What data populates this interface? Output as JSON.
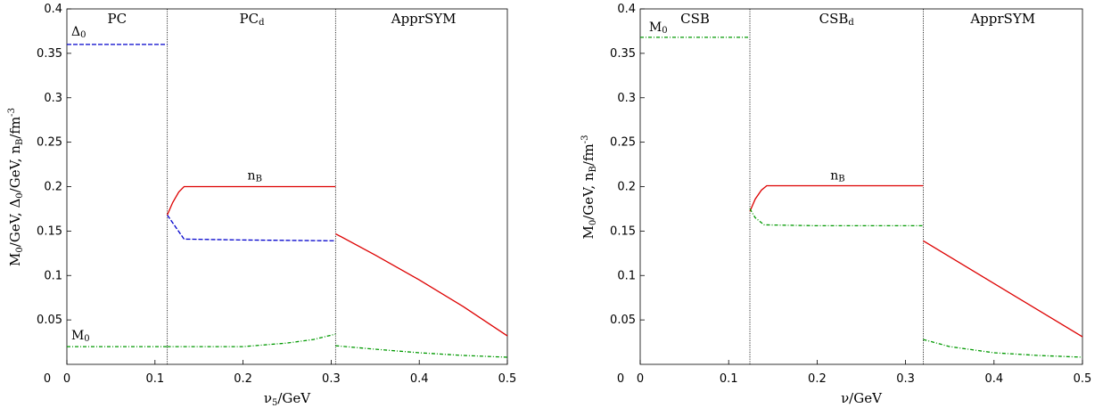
{
  "chart_data": [
    {
      "type": "line",
      "xlabel": "ν₅/GeV",
      "ylabel": "M₀/GeV, Δ₀/GeV, n_B/fm⁻³",
      "xlim": [
        0,
        0.5
      ],
      "ylim": [
        0,
        0.4
      ],
      "xticks": [
        "0",
        "0.1",
        "0.2",
        "0.3",
        "0.4",
        "0.5"
      ],
      "yticks": [
        "0.05",
        "0.1",
        "0.15",
        "0.2",
        "0.25",
        "0.3",
        "0.35",
        "0.4"
      ],
      "phase_boundaries": [
        0.114,
        0.305
      ],
      "phases": [
        {
          "label": "PC",
          "x": 0.057
        },
        {
          "label": "PCd",
          "x": 0.21
        },
        {
          "label": "ApprSYM",
          "x": 0.405
        }
      ],
      "series": [
        {
          "name": "Δ₀",
          "color": "#0000cc",
          "style": "dashed",
          "label_x": 0.005,
          "label_y": 0.37,
          "segments": [
            [
              [
                0,
                0.36
              ],
              [
                0.114,
                0.36
              ]
            ],
            [
              [
                0.114,
                0.168
              ],
              [
                0.133,
                0.141
              ],
              [
                0.2,
                0.14
              ],
              [
                0.305,
                0.139
              ]
            ]
          ]
        },
        {
          "name": "n_B",
          "color": "#dd0000",
          "style": "solid",
          "label_x": 0.205,
          "label_y": 0.208,
          "segments": [
            [
              [
                0.114,
                0.168
              ],
              [
                0.12,
                0.182
              ],
              [
                0.127,
                0.194
              ],
              [
                0.133,
                0.2
              ],
              [
                0.2,
                0.2
              ],
              [
                0.305,
                0.2
              ]
            ],
            [
              [
                0.305,
                0.147
              ],
              [
                0.35,
                0.123
              ],
              [
                0.4,
                0.095
              ],
              [
                0.45,
                0.065
              ],
              [
                0.5,
                0.032
              ]
            ]
          ]
        },
        {
          "name": "M₀",
          "color": "#009900",
          "style": "dashdot",
          "label_x": 0.005,
          "label_y": 0.028,
          "segments": [
            [
              [
                0,
                0.02
              ],
              [
                0.114,
                0.02
              ]
            ],
            [
              [
                0.114,
                0.02
              ],
              [
                0.15,
                0.02
              ],
              [
                0.2,
                0.02
              ],
              [
                0.25,
                0.024
              ],
              [
                0.28,
                0.028
              ],
              [
                0.305,
                0.034
              ]
            ],
            [
              [
                0.305,
                0.021
              ],
              [
                0.35,
                0.017
              ],
              [
                0.4,
                0.013
              ],
              [
                0.45,
                0.01
              ],
              [
                0.5,
                0.008
              ]
            ]
          ]
        }
      ]
    },
    {
      "type": "line",
      "xlabel": "ν/GeV",
      "ylabel": "M₀/GeV,  n_B/fm⁻³",
      "xlim": [
        0,
        0.5
      ],
      "ylim": [
        0,
        0.4
      ],
      "xticks": [
        "0",
        "0.1",
        "0.2",
        "0.3",
        "0.4",
        "0.5"
      ],
      "yticks": [
        "0.05",
        "0.1",
        "0.15",
        "0.2",
        "0.25",
        "0.3",
        "0.35",
        "0.4"
      ],
      "phase_boundaries": [
        0.124,
        0.32
      ],
      "phases": [
        {
          "label": "CSB",
          "x": 0.062
        },
        {
          "label": "CSBd",
          "x": 0.222
        },
        {
          "label": "ApprSYM",
          "x": 0.41
        }
      ],
      "series": [
        {
          "name": "n_B",
          "color": "#dd0000",
          "style": "solid",
          "label_x": 0.215,
          "label_y": 0.208,
          "segments": [
            [
              [
                0.124,
                0.172
              ],
              [
                0.13,
                0.186
              ],
              [
                0.137,
                0.196
              ],
              [
                0.143,
                0.201
              ],
              [
                0.2,
                0.201
              ],
              [
                0.32,
                0.201
              ]
            ],
            [
              [
                0.32,
                0.139
              ],
              [
                0.5,
                0.031
              ]
            ]
          ]
        },
        {
          "name": "M₀",
          "color": "#009900",
          "style": "dashdot",
          "label_x": 0.01,
          "label_y": 0.375,
          "segments": [
            [
              [
                0,
                0.368
              ],
              [
                0.124,
                0.368
              ]
            ],
            [
              [
                0.124,
                0.175
              ],
              [
                0.13,
                0.165
              ],
              [
                0.14,
                0.157
              ],
              [
                0.2,
                0.156
              ],
              [
                0.32,
                0.156
              ]
            ],
            [
              [
                0.32,
                0.028
              ],
              [
                0.35,
                0.02
              ],
              [
                0.4,
                0.013
              ],
              [
                0.45,
                0.01
              ],
              [
                0.5,
                0.008
              ]
            ]
          ]
        }
      ]
    }
  ]
}
